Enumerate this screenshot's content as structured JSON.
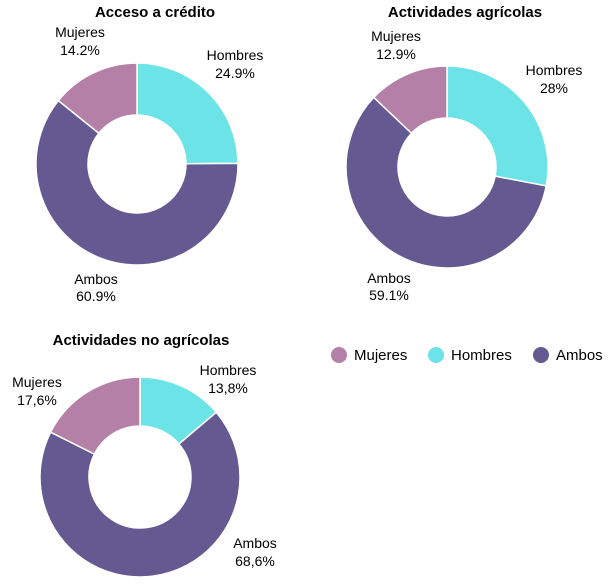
{
  "colors": {
    "Mujeres": "#b580a8",
    "Hombres": "#6ce3e7",
    "Ambos": "#645990"
  },
  "legend": {
    "items": [
      {
        "label": "Mujeres",
        "color": "#b580a8"
      },
      {
        "label": "Hombres",
        "color": "#6ce3e7"
      },
      {
        "label": "Ambos",
        "color": "#645990"
      }
    ]
  },
  "chart_data": [
    {
      "type": "pie",
      "title": "Acceso a crédito",
      "categories": [
        "Hombres",
        "Ambos",
        "Mujeres"
      ],
      "values": [
        24.9,
        60.9,
        14.2
      ],
      "labels": [
        "24.9%",
        "60.9%",
        "14.2%"
      ]
    },
    {
      "type": "pie",
      "title": "Actividades agrícolas",
      "categories": [
        "Hombres",
        "Ambos",
        "Mujeres"
      ],
      "values": [
        28,
        59.1,
        12.9
      ],
      "labels": [
        "28%",
        "59.1%",
        "12.9%"
      ]
    },
    {
      "type": "pie",
      "title": "Actividades no agrícolas",
      "categories": [
        "Hombres",
        "Ambos",
        "Mujeres"
      ],
      "values": [
        13.8,
        68.6,
        17.6
      ],
      "labels": [
        "13,8%",
        "68,6%",
        "17,6%"
      ]
    }
  ]
}
